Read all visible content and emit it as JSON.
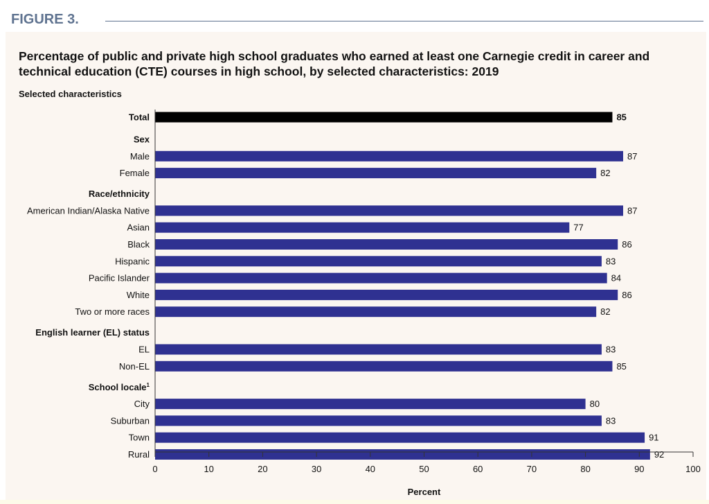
{
  "figure_label": "FIGURE 3.",
  "chart_data": {
    "type": "bar",
    "orientation": "horizontal",
    "title": "Percentage of public and private high school graduates who earned at least one Carnegie credit in career and technical education (CTE) courses in high school, by selected characteristics: 2019",
    "category_header": "Selected characteristics",
    "xlabel": "Percent",
    "xlim": [
      0,
      100
    ],
    "xticks": [
      0,
      10,
      20,
      30,
      40,
      50,
      60,
      70,
      80,
      90,
      100
    ],
    "grid": false,
    "colors": {
      "total": "#000000",
      "bars": "#2f3191"
    },
    "rows": [
      {
        "kind": "bar",
        "label": "Total",
        "value": 85,
        "total": true
      },
      {
        "kind": "group",
        "label": "Sex"
      },
      {
        "kind": "bar",
        "label": "Male",
        "value": 87
      },
      {
        "kind": "bar",
        "label": "Female",
        "value": 82
      },
      {
        "kind": "group",
        "label": "Race/ethnicity"
      },
      {
        "kind": "bar",
        "label": "American Indian/Alaska Native",
        "value": 87
      },
      {
        "kind": "bar",
        "label": "Asian",
        "value": 77
      },
      {
        "kind": "bar",
        "label": "Black",
        "value": 86
      },
      {
        "kind": "bar",
        "label": "Hispanic",
        "value": 83
      },
      {
        "kind": "bar",
        "label": "Pacific Islander",
        "value": 84
      },
      {
        "kind": "bar",
        "label": "White",
        "value": 86
      },
      {
        "kind": "bar",
        "label": "Two or more races",
        "value": 82
      },
      {
        "kind": "group",
        "label": "English learner (EL) status"
      },
      {
        "kind": "bar",
        "label": "EL",
        "value": 83
      },
      {
        "kind": "bar",
        "label": "Non-EL",
        "value": 85
      },
      {
        "kind": "group",
        "label": "School locale",
        "note": "1"
      },
      {
        "kind": "bar",
        "label": "City",
        "value": 80
      },
      {
        "kind": "bar",
        "label": "Suburban",
        "value": 83
      },
      {
        "kind": "bar",
        "label": "Town",
        "value": 91
      },
      {
        "kind": "bar",
        "label": "Rural",
        "value": 92
      }
    ]
  }
}
